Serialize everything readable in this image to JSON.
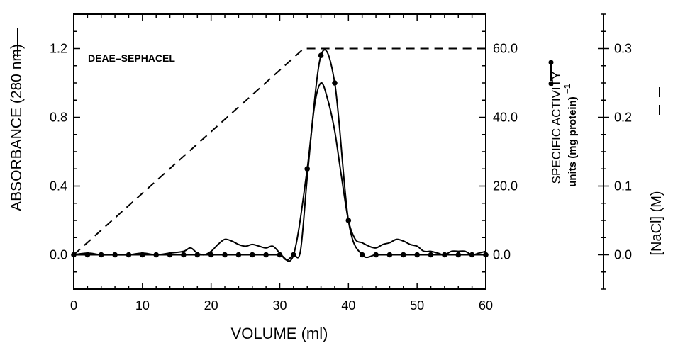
{
  "chart_data": {
    "type": "line",
    "panel_label": "DEAE–SEPHACEL",
    "xlabel": "VOLUME (ml)",
    "xlim": [
      0,
      60
    ],
    "x_ticks": [
      "0",
      "10",
      "20",
      "30",
      "40",
      "50",
      "60"
    ],
    "left_axis": {
      "label": "ABSORBANCE (280 nm)",
      "ylim": [
        -0.2,
        1.4
      ],
      "ticks": [
        "0.0",
        "0.4",
        "0.8",
        "1.2"
      ],
      "tick_values": [
        0.0,
        0.4,
        0.8,
        1.2
      ]
    },
    "right_axis_1": {
      "label_line1": "SPECIFIC ACTIVITY",
      "label_line2": "units (mg protein)",
      "label_exp": "−1",
      "ylim": [
        -10,
        70
      ],
      "ticks": [
        "0.0",
        "20.0",
        "40.0",
        "60.0"
      ],
      "tick_values": [
        0.0,
        20.0,
        40.0,
        60.0
      ]
    },
    "right_axis_2": {
      "label": "[NaCl] (M)",
      "ylim": [
        -0.05,
        0.35
      ],
      "ticks": [
        "0.0",
        "0.1",
        "0.2",
        "0.3"
      ],
      "tick_values": [
        0.0,
        0.1,
        0.2,
        0.3
      ]
    },
    "series": [
      {
        "axis": "absorbance",
        "style": "solid",
        "x": [
          0,
          2,
          4,
          6,
          8,
          10,
          12,
          14,
          16,
          17,
          18,
          19,
          20,
          21,
          22,
          23,
          24,
          25,
          26,
          27,
          28,
          29,
          30,
          31,
          32,
          33,
          34,
          35,
          36,
          37,
          38,
          39,
          40,
          41,
          42,
          43,
          44,
          45,
          46,
          47,
          48,
          49,
          50,
          51,
          52,
          53,
          54,
          55,
          56,
          57,
          58,
          59,
          60
        ],
        "y": [
          0.0,
          0.01,
          0.0,
          0.0,
          0.0,
          0.01,
          0.0,
          0.01,
          0.02,
          0.04,
          0.01,
          0.0,
          0.02,
          0.06,
          0.09,
          0.08,
          0.06,
          0.05,
          0.06,
          0.05,
          0.04,
          0.05,
          0.01,
          -0.03,
          0.0,
          0.02,
          0.45,
          0.85,
          1.0,
          0.9,
          0.72,
          0.45,
          0.2,
          0.09,
          0.07,
          0.05,
          0.04,
          0.06,
          0.07,
          0.09,
          0.08,
          0.06,
          0.05,
          0.02,
          0.02,
          0.01,
          0.0,
          0.02,
          0.02,
          0.02,
          0.0,
          0.01,
          0.02
        ]
      },
      {
        "axis": "specific_activity",
        "style": "solid-dots",
        "x": [
          0,
          2,
          4,
          6,
          8,
          10,
          12,
          14,
          16,
          18,
          20,
          22,
          24,
          26,
          28,
          30,
          32,
          34,
          36,
          38,
          40,
          42,
          44,
          46,
          48,
          50,
          52,
          54,
          56,
          58,
          60
        ],
        "y": [
          0,
          0,
          0,
          0,
          0,
          0,
          0,
          0,
          0,
          0,
          0,
          0,
          0,
          0,
          0,
          0,
          0,
          25,
          58,
          50,
          10,
          0,
          0,
          0,
          0,
          0,
          0,
          0,
          0,
          0,
          0
        ]
      },
      {
        "axis": "nacl",
        "style": "dashed",
        "x": [
          0,
          33.5,
          60
        ],
        "y": [
          0.0,
          0.3,
          0.3
        ]
      }
    ]
  }
}
